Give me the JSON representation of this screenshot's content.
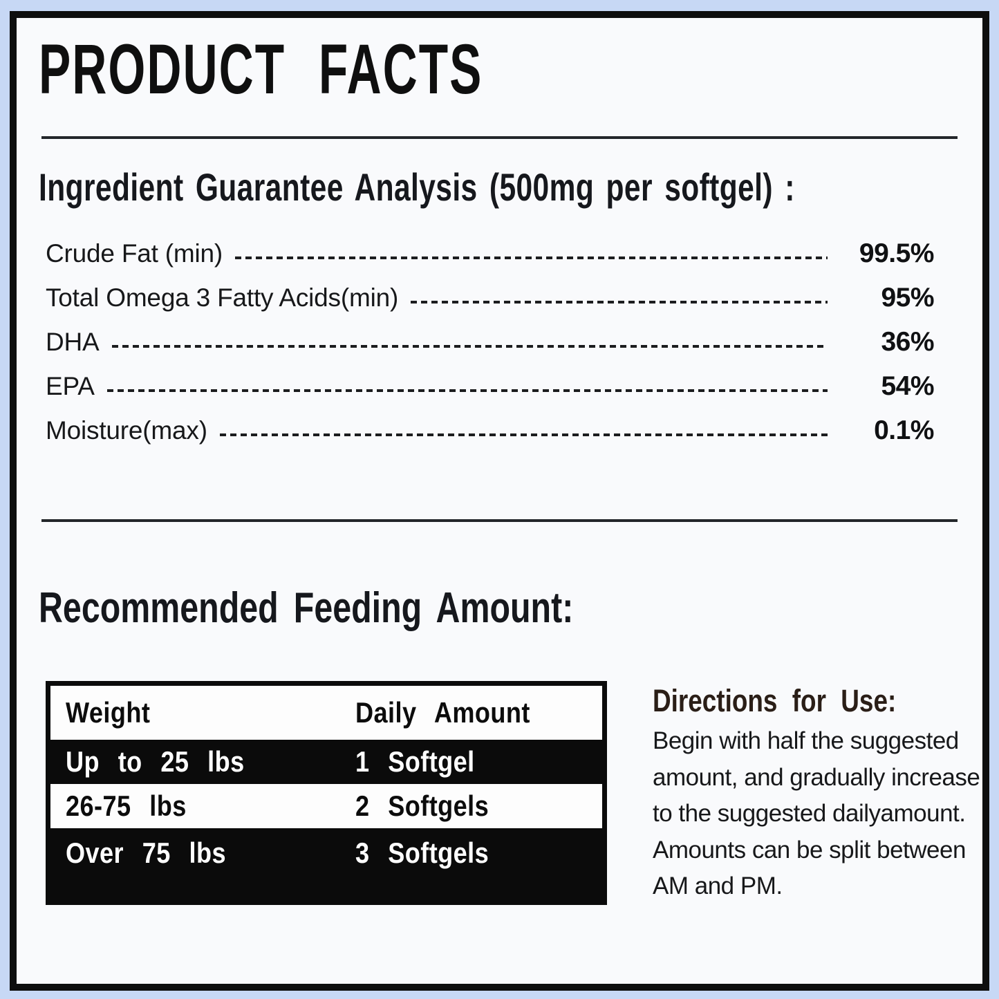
{
  "label": {
    "title": "PRODUCT FACTS",
    "analysis": {
      "heading": "Ingredient Guarantee Analysis (500mg per softgel) :",
      "rows": [
        {
          "name": "Crude Fat (min)",
          "value": "99.5%"
        },
        {
          "name": "Total Omega 3 Fatty Acids(min)",
          "value": "95%"
        },
        {
          "name": "DHA",
          "value": "36%"
        },
        {
          "name": "EPA",
          "value": "54%"
        },
        {
          "name": "Moisture(max)",
          "value": "0.1%"
        }
      ]
    },
    "feeding": {
      "heading": "Recommended Feeding Amount:",
      "table": {
        "columns": [
          "Weight",
          "Daily Amount"
        ],
        "rows": [
          {
            "weight": "Up to 25 lbs",
            "amount": "1 Softgel"
          },
          {
            "weight": "26-75 lbs",
            "amount": "2 Softgels"
          },
          {
            "weight": "Over 75 lbs",
            "amount": "3 Softgels"
          }
        ]
      }
    },
    "directions": {
      "heading": "Directions for Use:",
      "lines": [
        "Begin with half the suggested",
        "amount, and gradually increase",
        "to the suggested dailyamount.",
        "Amounts can be split between",
        "AM and PM."
      ]
    },
    "colors": {
      "outer_border_blue": "#c7d8f5",
      "frame_black": "#0e0e0e",
      "panel_background": "#f9fafc",
      "table_black": "#0b0b0b",
      "directions_heading_brown": "#2a1e17"
    }
  }
}
